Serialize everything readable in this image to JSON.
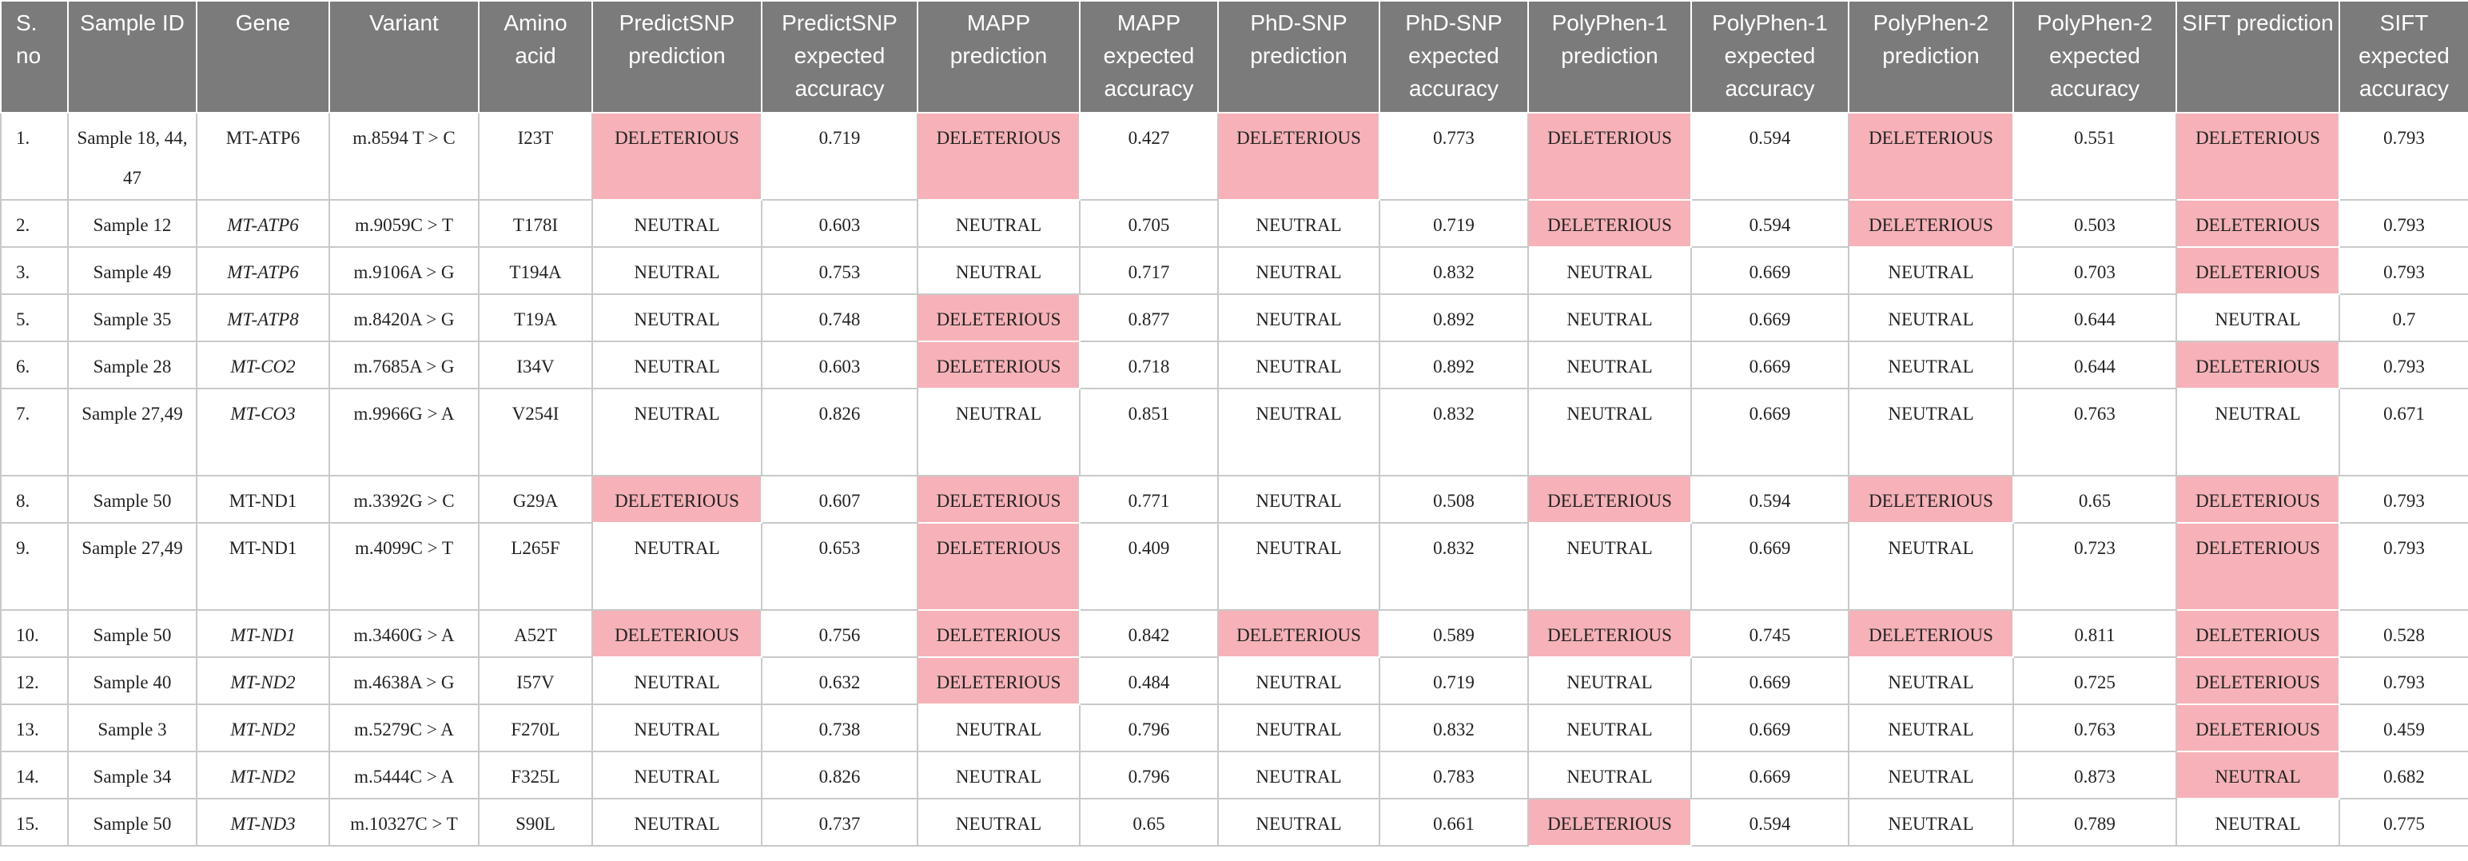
{
  "headers": [
    "S. no",
    "Sample ID",
    "Gene",
    "Variant",
    "Amino acid",
    "PredictSNP prediction",
    "PredictSNP expected accuracy",
    "MAPP prediction",
    "MAPP expected accuracy",
    "PhD-SNP prediction",
    "PhD-SNP expected accuracy",
    "PolyPhen-1 prediction",
    "PolyPhen-1 expected accuracy",
    "PolyPhen-2 prediction",
    "PolyPhen-2 expected accuracy",
    "SIFT prediction",
    "SIFT expected accuracy"
  ],
  "highlight_color": "#f6b2b8",
  "header_color": "#7b7b7b",
  "rows": [
    {
      "sno": "1.",
      "sample": "Sample 18, 44, 47",
      "gene": "MT-ATP6",
      "gene_italic": false,
      "variant": "m.8594 T > C",
      "aa": "I23T",
      "vals": [
        "DELETERIOUS",
        "0.719",
        "DELETERIOUS",
        "0.427",
        "DELETERIOUS",
        "0.773",
        "DELETERIOUS",
        "0.594",
        "DELETERIOUS",
        "0.551",
        "DELETERIOUS",
        "0.793"
      ]
    },
    {
      "sno": "2.",
      "sample": "Sample 12",
      "gene": "MT-ATP6",
      "gene_italic": true,
      "variant": "m.9059C > T",
      "aa": "T178I",
      "vals": [
        "NEUTRAL",
        "0.603",
        "NEUTRAL",
        "0.705",
        "NEUTRAL",
        "0.719",
        "DELETERIOUS",
        "0.594",
        "DELETERIOUS",
        "0.503",
        "DELETERIOUS",
        "0.793"
      ]
    },
    {
      "sno": "3.",
      "sample": "Sample 49",
      "gene": "MT-ATP6",
      "gene_italic": true,
      "variant": "m.9106A > G",
      "aa": "T194A",
      "vals": [
        "NEUTRAL",
        "0.753",
        "NEUTRAL",
        "0.717",
        "NEUTRAL",
        "0.832",
        "NEUTRAL",
        "0.669",
        "NEUTRAL",
        "0.703",
        "DELETERIOUS",
        "0.793"
      ]
    },
    {
      "sno": "5.",
      "sample": "Sample 35",
      "gene": "MT-ATP8",
      "gene_italic": true,
      "variant": "m.8420A > G",
      "aa": "T19A",
      "vals": [
        "NEUTRAL",
        "0.748",
        "DELETERIOUS",
        "0.877",
        "NEUTRAL",
        "0.892",
        "NEUTRAL",
        "0.669",
        "NEUTRAL",
        "0.644",
        "NEUTRAL",
        "0.7"
      ]
    },
    {
      "sno": "6.",
      "sample": "Sample 28",
      "gene": "MT-CO2",
      "gene_italic": true,
      "variant": "m.7685A > G",
      "aa": "I34V",
      "vals": [
        "NEUTRAL",
        "0.603",
        "DELETERIOUS",
        "0.718",
        "NEUTRAL",
        "0.892",
        "NEUTRAL",
        "0.669",
        "NEUTRAL",
        "0.644",
        "DELETERIOUS",
        "0.793"
      ]
    },
    {
      "sno": "7.",
      "sample": "Sample 27,49",
      "gene": "MT-CO3",
      "gene_italic": true,
      "variant": "m.9966G > A",
      "aa": "V254I",
      "vals": [
        "NEUTRAL",
        "0.826",
        "NEUTRAL",
        "0.851",
        "NEUTRAL",
        "0.832",
        "NEUTRAL",
        "0.669",
        "NEUTRAL",
        "0.763",
        "NEUTRAL",
        "0.671"
      ]
    },
    {
      "sno": "8.",
      "sample": "Sample 50",
      "gene": "MT-ND1",
      "gene_italic": false,
      "variant": "m.3392G > C",
      "aa": "G29A",
      "vals": [
        "DELETERIOUS",
        "0.607",
        "DELETERIOUS",
        "0.771",
        "NEUTRAL",
        "0.508",
        "DELETERIOUS",
        "0.594",
        "DELETERIOUS",
        "0.65",
        "DELETERIOUS",
        "0.793"
      ]
    },
    {
      "sno": "9.",
      "sample": "Sample 27,49",
      "gene": "MT-ND1",
      "gene_italic": false,
      "variant": "m.4099C > T",
      "aa": "L265F",
      "vals": [
        "NEUTRAL",
        "0.653",
        "DELETERIOUS",
        "0.409",
        "NEUTRAL",
        "0.832",
        "NEUTRAL",
        "0.669",
        "NEUTRAL",
        "0.723",
        "DELETERIOUS",
        "0.793"
      ]
    },
    {
      "sno": "10.",
      "sample": "Sample 50",
      "gene": "MT-ND1",
      "gene_italic": true,
      "variant": "m.3460G > A",
      "aa": "A52T",
      "vals": [
        "DELETERIOUS",
        "0.756",
        "DELETERIOUS",
        "0.842",
        "DELETERIOUS",
        "0.589",
        "DELETERIOUS",
        "0.745",
        "DELETERIOUS",
        "0.811",
        "DELETERIOUS",
        "0.528"
      ]
    },
    {
      "sno": "12.",
      "sample": "Sample 40",
      "gene": "MT-ND2",
      "gene_italic": true,
      "variant": "m.4638A > G",
      "aa": "I57V",
      "vals": [
        "NEUTRAL",
        "0.632",
        "DELETERIOUS",
        "0.484",
        "NEUTRAL",
        "0.719",
        "NEUTRAL",
        "0.669",
        "NEUTRAL",
        "0.725",
        "DELETERIOUS",
        "0.793"
      ]
    },
    {
      "sno": "13.",
      "sample": "Sample 3",
      "gene": "MT-ND2",
      "gene_italic": true,
      "variant": "m.5279C > A",
      "aa": "F270L",
      "vals": [
        "NEUTRAL",
        "0.738",
        "NEUTRAL",
        "0.796",
        "NEUTRAL",
        "0.832",
        "NEUTRAL",
        "0.669",
        "NEUTRAL",
        "0.763",
        "DELETERIOUS",
        "0.459"
      ]
    },
    {
      "sno": "14.",
      "sample": "Sample 34",
      "gene": "MT-ND2",
      "gene_italic": true,
      "variant": "m.5444C > A",
      "aa": "F325L",
      "vals": [
        "NEUTRAL",
        "0.826",
        "NEUTRAL",
        "0.796",
        "NEUTRAL",
        "0.783",
        "NEUTRAL",
        "0.669",
        "NEUTRAL",
        "0.873",
        "NEUTRAL",
        "0.682"
      ]
    },
    {
      "sno": "15.",
      "sample": "Sample 50",
      "gene": "MT-ND3",
      "gene_italic": true,
      "variant": "m.10327C > T",
      "aa": "S90L",
      "vals": [
        "NEUTRAL",
        "0.737",
        "NEUTRAL",
        "0.65",
        "NEUTRAL",
        "0.661",
        "DELETERIOUS",
        "0.594",
        "NEUTRAL",
        "0.789",
        "NEUTRAL",
        "0.775"
      ]
    }
  ],
  "highlight_cells": [
    [
      0,
      0
    ],
    [
      0,
      2
    ],
    [
      0,
      4
    ],
    [
      0,
      6
    ],
    [
      0,
      8
    ],
    [
      0,
      10
    ],
    [
      1,
      6
    ],
    [
      1,
      8
    ],
    [
      1,
      10
    ],
    [
      2,
      10
    ],
    [
      3,
      2
    ],
    [
      4,
      2
    ],
    [
      4,
      10
    ],
    [
      6,
      0
    ],
    [
      6,
      2
    ],
    [
      6,
      6
    ],
    [
      6,
      8
    ],
    [
      6,
      10
    ],
    [
      7,
      2
    ],
    [
      7,
      10
    ],
    [
      8,
      0
    ],
    [
      8,
      2
    ],
    [
      8,
      4
    ],
    [
      8,
      6
    ],
    [
      8,
      8
    ],
    [
      8,
      10
    ],
    [
      9,
      2
    ],
    [
      9,
      10
    ],
    [
      10,
      10
    ],
    [
      11,
      10
    ],
    [
      12,
      6
    ]
  ]
}
